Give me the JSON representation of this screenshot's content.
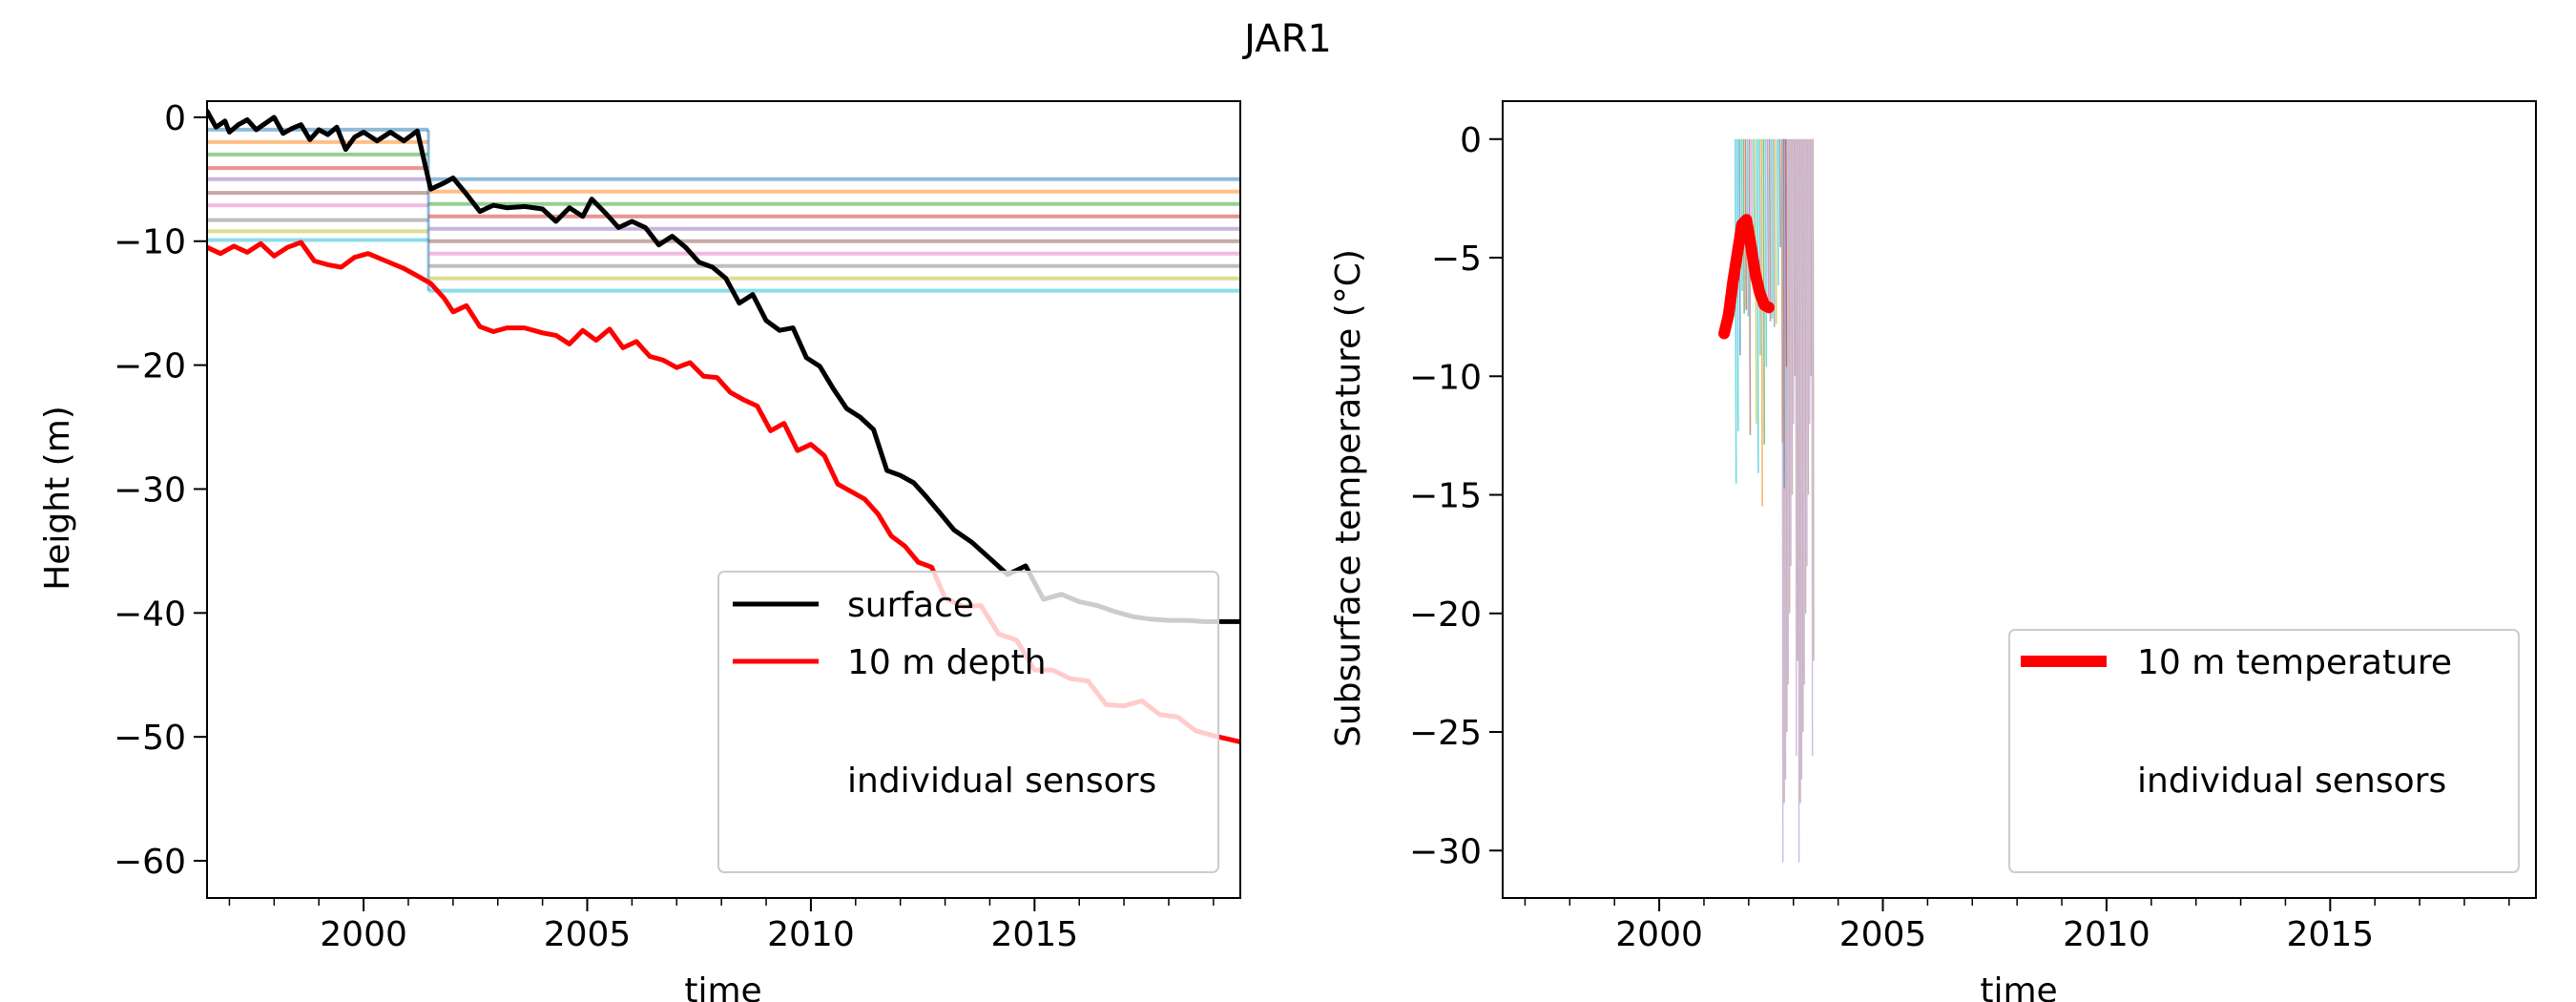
{
  "figure": {
    "title": "JAR1"
  },
  "chart_data": [
    {
      "type": "line",
      "ylabel": "Height (m)",
      "xlabel": "time",
      "xlim": [
        1996.5,
        2019.6
      ],
      "ylim": [
        -63,
        1.3
      ],
      "xticks": [
        2000,
        2005,
        2010,
        2015
      ],
      "yticks": [
        0,
        -10,
        -20,
        -30,
        -40,
        -50,
        -60
      ],
      "minor_xtick_step": 1,
      "legend": {
        "position": "lower-right",
        "entries": [
          "surface",
          "10 m depth",
          "individual sensors"
        ]
      },
      "series": [
        {
          "name": "surface",
          "color": "#000000",
          "x": [
            1996.5,
            1996.7,
            1996.9,
            1997.0,
            1997.2,
            1997.4,
            1997.6,
            1997.8,
            1998.0,
            1998.2,
            1998.4,
            1998.6,
            1998.8,
            1999.0,
            1999.2,
            1999.4,
            1999.6,
            1999.8,
            2000.0,
            2000.3,
            2000.6,
            2000.9,
            2001.2,
            2001.5,
            2001.8,
            2002.0,
            2002.3,
            2002.6,
            2002.9,
            2003.2,
            2003.6,
            2004.0,
            2004.3,
            2004.6,
            2004.9,
            2005.1,
            2005.4,
            2005.7,
            2006.0,
            2006.3,
            2006.6,
            2006.9,
            2007.2,
            2007.5,
            2007.8,
            2008.1,
            2008.4,
            2008.7,
            2009.0,
            2009.3,
            2009.6,
            2009.9,
            2010.2,
            2010.5,
            2010.8,
            2011.1,
            2011.4,
            2011.7,
            2012.0,
            2012.3,
            2012.6,
            2012.9,
            2013.2,
            2013.6,
            2014.0,
            2014.4,
            2014.8,
            2015.2,
            2015.6,
            2016.0,
            2016.4,
            2016.8,
            2017.2,
            2017.6,
            2018.0,
            2018.4,
            2018.8,
            2019.2,
            2019.6
          ],
          "y": [
            0.5,
            -0.8,
            -0.3,
            -1.2,
            -0.6,
            -0.2,
            -1.0,
            -0.5,
            0.0,
            -1.3,
            -0.9,
            -0.6,
            -1.8,
            -1.0,
            -1.4,
            -0.8,
            -2.6,
            -1.6,
            -1.2,
            -1.9,
            -1.2,
            -1.9,
            -1.1,
            -5.8,
            -5.3,
            -4.9,
            -6.2,
            -7.6,
            -7.1,
            -7.3,
            -7.2,
            -7.4,
            -8.4,
            -7.3,
            -8.0,
            -6.6,
            -7.7,
            -8.9,
            -8.4,
            -8.9,
            -10.3,
            -9.6,
            -10.5,
            -11.7,
            -12.1,
            -13.0,
            -15.0,
            -14.3,
            -16.4,
            -17.2,
            -17.0,
            -19.4,
            -20.1,
            -21.9,
            -23.5,
            -24.2,
            -25.2,
            -28.5,
            -28.9,
            -29.5,
            -30.7,
            -32.0,
            -33.3,
            -34.3,
            -35.6,
            -36.9,
            -36.2,
            -38.9,
            -38.5,
            -39.1,
            -39.4,
            -39.9,
            -40.3,
            -40.5,
            -40.6,
            -40.6,
            -40.7,
            -40.7,
            -40.7
          ]
        },
        {
          "name": "10 m depth",
          "color": "#ff0000",
          "x": [
            1996.5,
            1996.8,
            1997.1,
            1997.4,
            1997.7,
            1998.0,
            1998.3,
            1998.6,
            1998.9,
            1999.2,
            1999.5,
            1999.8,
            2000.1,
            2000.5,
            2000.9,
            2001.2,
            2001.5,
            2001.8,
            2002.0,
            2002.3,
            2002.6,
            2002.9,
            2003.2,
            2003.6,
            2004.0,
            2004.3,
            2004.6,
            2004.9,
            2005.2,
            2005.5,
            2005.8,
            2006.1,
            2006.4,
            2006.7,
            2007.0,
            2007.3,
            2007.6,
            2007.9,
            2008.2,
            2008.5,
            2008.8,
            2009.1,
            2009.4,
            2009.7,
            2010.0,
            2010.3,
            2010.6,
            2010.9,
            2011.2,
            2011.5,
            2011.8,
            2012.1,
            2012.4,
            2012.7,
            2013.0,
            2013.4,
            2013.8,
            2014.2,
            2014.6,
            2015.0,
            2015.4,
            2015.8,
            2016.2,
            2016.6,
            2017.0,
            2017.4,
            2017.8,
            2018.2,
            2018.6,
            2019.0,
            2019.6
          ],
          "y": [
            -10.5,
            -11.0,
            -10.4,
            -10.9,
            -10.2,
            -11.2,
            -10.5,
            -10.1,
            -11.6,
            -11.9,
            -12.1,
            -11.3,
            -11.0,
            -11.6,
            -12.2,
            -12.8,
            -13.4,
            -14.6,
            -15.7,
            -15.2,
            -16.9,
            -17.3,
            -17.0,
            -17.0,
            -17.4,
            -17.6,
            -18.3,
            -17.2,
            -18.0,
            -17.1,
            -18.6,
            -18.1,
            -19.3,
            -19.6,
            -20.2,
            -19.8,
            -20.9,
            -21.0,
            -22.2,
            -22.8,
            -23.3,
            -25.3,
            -24.7,
            -26.9,
            -26.4,
            -27.3,
            -29.6,
            -30.2,
            -30.8,
            -32.0,
            -33.8,
            -34.6,
            -35.9,
            -36.3,
            -38.8,
            -39.5,
            -39.4,
            -41.7,
            -42.2,
            -44.6,
            -44.6,
            -45.3,
            -45.5,
            -47.4,
            -47.5,
            -47.1,
            -48.2,
            -48.4,
            -49.5,
            -49.9,
            -50.4
          ]
        }
      ]
    },
    {
      "type": "line",
      "ylabel": "Subsurface temperature (°C)",
      "xlabel": "time",
      "xlim": [
        1996.5,
        2019.6
      ],
      "ylim": [
        -32,
        1.6
      ],
      "xticks": [
        2000,
        2005,
        2010,
        2015
      ],
      "yticks": [
        0,
        -5,
        -10,
        -15,
        -20,
        -25,
        -30
      ],
      "minor_xtick_step": 1,
      "legend": {
        "position": "lower-right",
        "entries": [
          "10 m temperature",
          "individual sensors"
        ]
      },
      "series": [
        {
          "name": "10 m temperature",
          "color": "#ff0000",
          "x": [
            2001.45,
            2001.55,
            2001.65,
            2001.75,
            2001.85,
            2001.95,
            2002.05,
            2002.15,
            2002.25,
            2002.35,
            2002.45
          ],
          "y": [
            -8.2,
            -7.4,
            -6.0,
            -4.8,
            -3.6,
            -3.4,
            -4.5,
            -5.7,
            -6.5,
            -7.0,
            -7.1
          ]
        }
      ]
    }
  ]
}
